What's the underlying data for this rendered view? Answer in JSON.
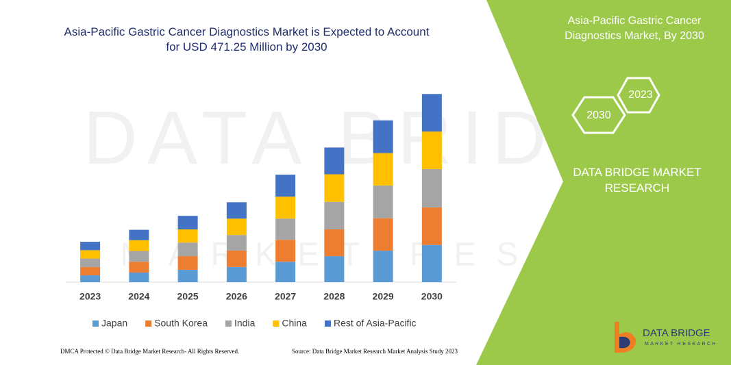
{
  "chart_data": {
    "type": "bar",
    "stacked": true,
    "title": "Asia-Pacific Gastric Cancer Diagnostics Market is Expected to Account for USD 471.25 Million by 2030",
    "categories": [
      "2023",
      "2024",
      "2025",
      "2026",
      "2027",
      "2028",
      "2029",
      "2030"
    ],
    "series": [
      {
        "name": "Japan",
        "color": "#5b9bd5",
        "values": [
          17,
          24,
          31,
          38,
          51,
          65,
          79,
          93
        ]
      },
      {
        "name": "South Korea",
        "color": "#ed7d31",
        "values": [
          21,
          27,
          34,
          41,
          55,
          67,
          81,
          94
        ]
      },
      {
        "name": "India",
        "color": "#a5a5a5",
        "values": [
          21,
          27,
          34,
          39,
          53,
          69,
          82,
          96
        ]
      },
      {
        "name": "China",
        "color": "#ffc000",
        "values": [
          21,
          27,
          33,
          41,
          55,
          69,
          81,
          94
        ]
      },
      {
        "name": "Rest of Asia-Pacific",
        "color": "#4472c4",
        "values": [
          21,
          26,
          34,
          41,
          55,
          67,
          82,
          94
        ]
      }
    ],
    "ylim": [
      0,
      480
    ],
    "legend": "bottom"
  },
  "panel": {
    "title": "Asia-Pacific Gastric Cancer Diagnostics Market, By 2030",
    "hex_front": "2030",
    "hex_back": "2023",
    "brand": "DATA BRIDGE MARKET RESEARCH"
  },
  "watermark": {
    "line1": "DATA BRIDGE",
    "line2": "MARKET RESEARCH"
  },
  "logo": {
    "name": "DATA BRIDGE",
    "tagline": "MARKET RESEARCH"
  },
  "footer": {
    "left": "DMCA Protected © Data Bridge Market Research- All Rights Reserved.",
    "right": "Source: Data Bridge Market Research Market Analysis Study 2023"
  }
}
